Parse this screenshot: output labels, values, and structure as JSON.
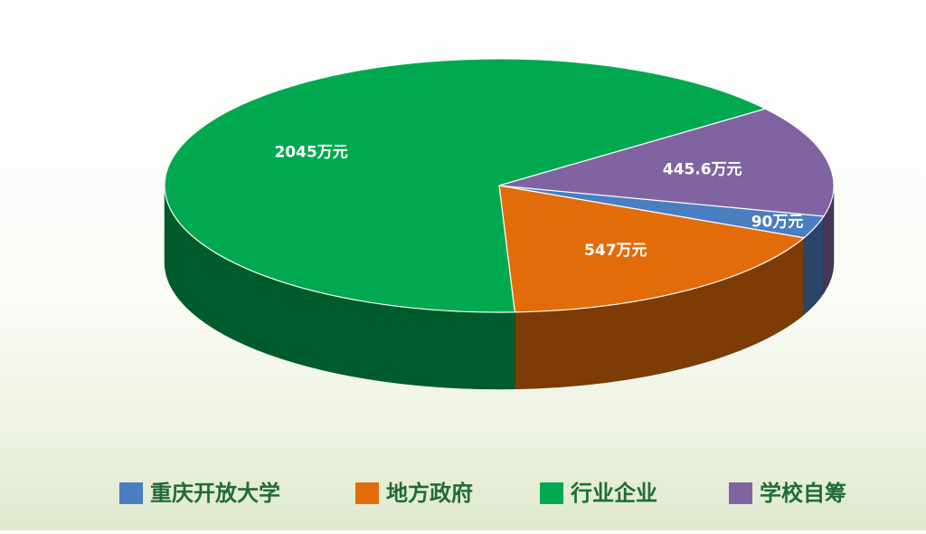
{
  "chart_data": {
    "type": "pie",
    "categories": [
      "重庆开放大学",
      "地方政府",
      "行业企业",
      "学校自筹"
    ],
    "values": [
      90,
      547,
      2045,
      445.6
    ],
    "value_labels": [
      "90万元",
      "547万元",
      "2045万元",
      "445.6万元"
    ],
    "colors": [
      "#4a7ec0",
      "#e36c0a",
      "#00a850",
      "#8064a2"
    ],
    "legend": "bottom"
  }
}
